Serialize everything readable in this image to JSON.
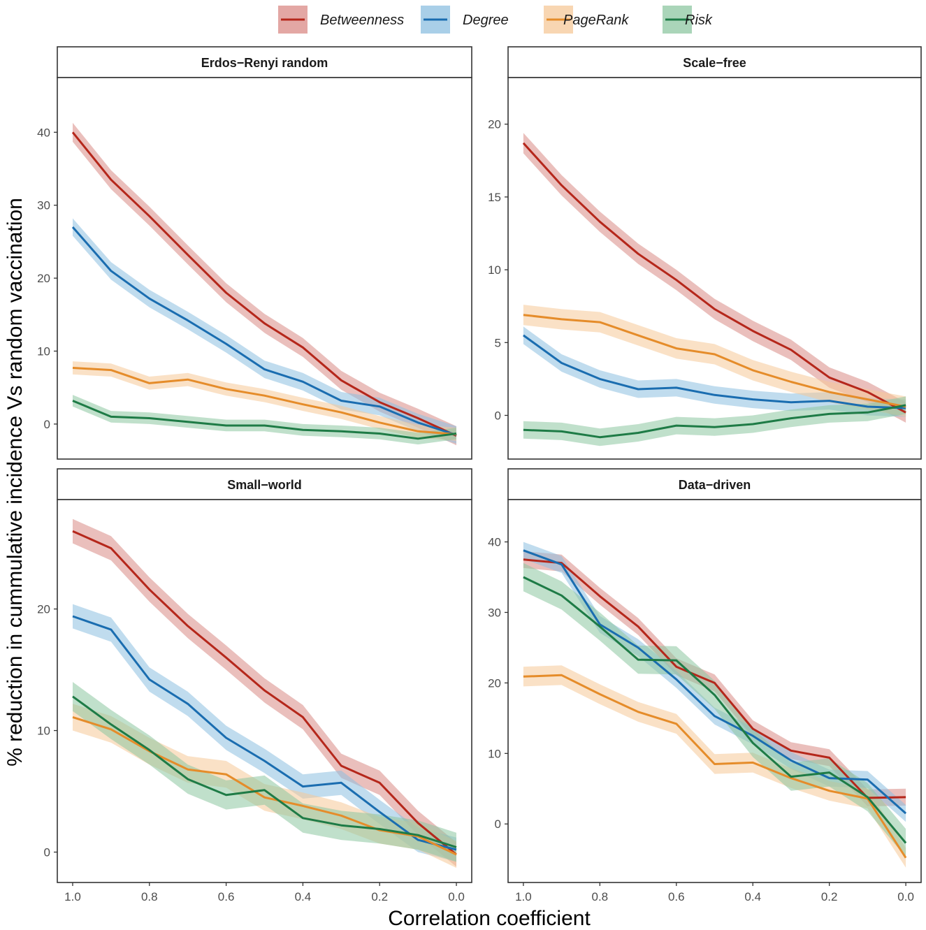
{
  "chart_data": {
    "type": "line",
    "xlabel": "Correlation coefficient",
    "ylabel": "% reduction in cummulative incidence Vs random vaccination",
    "x": [
      1.0,
      0.9,
      0.8,
      0.7,
      0.6,
      0.5,
      0.4,
      0.3,
      0.2,
      0.1,
      0.0
    ],
    "x_ticks": [
      1.0,
      0.8,
      0.6,
      0.4,
      0.2,
      0.0
    ],
    "x_tick_labels": [
      "1.0",
      "0.8",
      "0.6",
      "0.4",
      "0.2",
      "0.0"
    ],
    "xlim": [
      1.04,
      -0.04
    ],
    "legend": [
      {
        "name": "Betweenness",
        "color": "#B5271B",
        "fill": "#D98A85"
      },
      {
        "name": "Degree",
        "color": "#1A6DB0",
        "fill": "#8CBFE0"
      },
      {
        "name": "PageRank",
        "color": "#E58C2A",
        "fill": "#F5C898"
      },
      {
        "name": "Risk",
        "color": "#1E7B46",
        "fill": "#8DC7A1"
      }
    ],
    "panels": [
      {
        "title": "Erdos−Renyi random",
        "ylim": [
          -4.8,
          47.5
        ],
        "y_ticks": [
          0,
          10,
          20,
          30,
          40
        ],
        "y_tick_labels": [
          "0",
          "10",
          "20",
          "30",
          "40"
        ],
        "series": [
          {
            "name": "Betweenness",
            "values": [
              40.0,
              33.5,
              28.5,
              23.2,
              18.0,
              13.8,
              10.5,
              6.0,
              3.0,
              0.8,
              -1.6
            ],
            "band": 1.3
          },
          {
            "name": "Degree",
            "values": [
              27.0,
              21.0,
              17.2,
              14.2,
              11.0,
              7.5,
              5.8,
              3.2,
              2.4,
              0.2,
              -1.5
            ],
            "band": 1.2
          },
          {
            "name": "PageRank",
            "values": [
              7.7,
              7.4,
              5.6,
              6.1,
              4.8,
              3.9,
              2.7,
              1.6,
              0.2,
              -1.0,
              -1.4
            ],
            "band": 0.9
          },
          {
            "name": "Risk",
            "values": [
              3.2,
              1.0,
              0.8,
              0.3,
              -0.2,
              -0.2,
              -0.8,
              -1.0,
              -1.3,
              -2.0,
              -1.3
            ],
            "band": 0.8
          }
        ]
      },
      {
        "title": "Scale−free",
        "ylim": [
          -3.0,
          23.2
        ],
        "y_ticks": [
          0,
          5,
          10,
          15,
          20
        ],
        "y_tick_labels": [
          "0",
          "5",
          "10",
          "15",
          "20"
        ],
        "series": [
          {
            "name": "Betweenness",
            "values": [
              18.7,
              15.8,
              13.3,
              11.1,
              9.3,
              7.3,
              5.8,
              4.5,
              2.6,
              1.6,
              0.2
            ],
            "band": 0.7
          },
          {
            "name": "Degree",
            "values": [
              5.5,
              3.6,
              2.5,
              1.8,
              1.9,
              1.4,
              1.1,
              0.9,
              1.0,
              0.6,
              0.5
            ],
            "band": 0.6
          },
          {
            "name": "PageRank",
            "values": [
              6.9,
              6.6,
              6.4,
              5.5,
              4.6,
              4.2,
              3.1,
              2.3,
              1.6,
              1.1,
              0.6
            ],
            "band": 0.7
          },
          {
            "name": "Risk",
            "values": [
              -1.0,
              -1.1,
              -1.5,
              -1.2,
              -0.7,
              -0.8,
              -0.6,
              -0.2,
              0.1,
              0.2,
              0.7
            ],
            "band": 0.6
          }
        ]
      },
      {
        "title": "Small−world",
        "ylim": [
          -2.5,
          29.0
        ],
        "y_ticks": [
          0,
          10,
          20
        ],
        "y_tick_labels": [
          "0",
          "10",
          "20"
        ],
        "series": [
          {
            "name": "Betweenness",
            "values": [
              26.4,
              25.0,
              21.6,
              18.6,
              16.0,
              13.3,
              11.1,
              7.1,
              5.7,
              2.4,
              -0.2
            ],
            "band": 1.0
          },
          {
            "name": "Degree",
            "values": [
              19.4,
              18.3,
              14.2,
              12.2,
              9.4,
              7.5,
              5.4,
              5.7,
              3.3,
              1.0,
              0.2
            ],
            "band": 1.0
          },
          {
            "name": "PageRank",
            "values": [
              11.1,
              10.1,
              8.3,
              6.8,
              6.4,
              4.5,
              3.8,
              3.0,
              1.8,
              1.3,
              -0.2
            ],
            "band": 1.1
          },
          {
            "name": "Risk",
            "values": [
              12.8,
              10.5,
              8.4,
              6.0,
              4.7,
              5.1,
              2.8,
              2.2,
              1.9,
              1.4,
              0.4
            ],
            "band": 1.2
          }
        ]
      },
      {
        "title": "Data−driven",
        "ylim": [
          -8.3,
          46.0
        ],
        "y_ticks": [
          0,
          10,
          20,
          30,
          40
        ],
        "y_tick_labels": [
          "0",
          "10",
          "20",
          "30",
          "40"
        ],
        "series": [
          {
            "name": "Betweenness",
            "values": [
              37.5,
              37.0,
              32.3,
              28.0,
              22.3,
              20.0,
              13.5,
              10.4,
              9.4,
              3.7,
              3.8
            ],
            "band": 1.2
          },
          {
            "name": "Degree",
            "values": [
              38.8,
              36.8,
              28.3,
              25.0,
              20.5,
              15.3,
              12.5,
              9.0,
              6.5,
              6.3,
              1.5
            ],
            "band": 1.2
          },
          {
            "name": "PageRank",
            "values": [
              20.9,
              21.1,
              18.4,
              15.9,
              14.2,
              8.5,
              8.7,
              6.5,
              4.7,
              3.6,
              -4.8
            ],
            "band": 1.4
          },
          {
            "name": "Risk",
            "values": [
              35.0,
              32.4,
              28.0,
              23.3,
              23.2,
              18.3,
              11.5,
              6.7,
              7.3,
              3.8,
              -2.7
            ],
            "band": 2.0
          }
        ]
      }
    ]
  }
}
